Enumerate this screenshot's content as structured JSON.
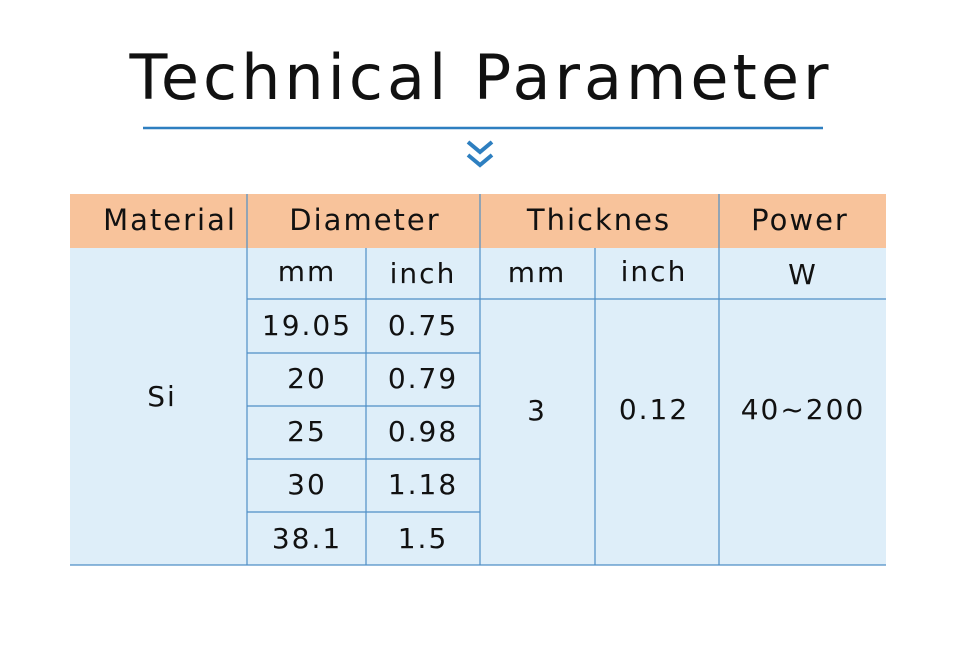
{
  "header": {
    "title": "Technical Parameter"
  },
  "table": {
    "columns": [
      "Material",
      "Diameter",
      "Thicknes",
      "Power"
    ],
    "units": [
      "mm",
      "inch",
      "mm",
      "inch",
      "W"
    ],
    "material": "Si",
    "diameter_rows": [
      [
        "19.05",
        "0.75"
      ],
      [
        "20",
        "0.79"
      ],
      [
        "25",
        "0.98"
      ],
      [
        "30",
        "1.18"
      ],
      [
        "38.1",
        "1.5"
      ]
    ],
    "thickness": [
      "3",
      "0.12"
    ],
    "power": "40~200"
  }
}
